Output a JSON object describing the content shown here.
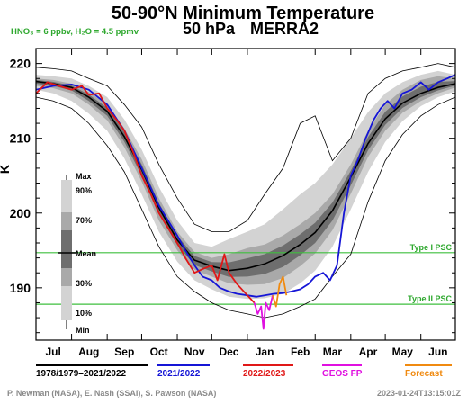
{
  "chart_data": {
    "type": "line",
    "title": "50-90°N Minimum Temperature",
    "subtitle_level": "50 hPa",
    "subtitle_source": "MERRA2",
    "conditions": "HNO₃ = 6 ppbv, H₂O = 4.5 ppmv",
    "ylabel": "K",
    "ylim": [
      183,
      222
    ],
    "xlim": [
      0,
      365
    ],
    "yticks": [
      190,
      200,
      210,
      220
    ],
    "months": [
      {
        "label": "Jul",
        "day": 15
      },
      {
        "label": "Aug",
        "day": 46
      },
      {
        "label": "Sep",
        "day": 77
      },
      {
        "label": "Oct",
        "day": 107
      },
      {
        "label": "Nov",
        "day": 138
      },
      {
        "label": "Dec",
        "day": 168
      },
      {
        "label": "Jan",
        "day": 199
      },
      {
        "label": "Feb",
        "day": 230
      },
      {
        "label": "Mar",
        "day": 258
      },
      {
        "label": "Apr",
        "day": 289
      },
      {
        "label": "May",
        "day": 319
      },
      {
        "label": "Jun",
        "day": 350
      }
    ],
    "month_boundaries": [
      31,
      62,
      92,
      123,
      153,
      184,
      215,
      243,
      274,
      304,
      335
    ],
    "psc_lines": [
      {
        "label": "Type I PSC",
        "value": 194.7
      },
      {
        "label": "Type II PSC",
        "value": 187.8
      }
    ],
    "climatology_days": [
      0,
      15,
      31,
      46,
      62,
      77,
      92,
      107,
      123,
      138,
      153,
      168,
      184,
      199,
      215,
      230,
      243,
      258,
      274,
      289,
      304,
      319,
      335,
      350,
      365
    ],
    "clim_max": [
      219.5,
      219.3,
      219.0,
      218.0,
      217.0,
      214.5,
      211.5,
      206.5,
      202.0,
      198.5,
      197.5,
      197.5,
      199.0,
      202.5,
      206.0,
      212.0,
      213.0,
      207.0,
      210.0,
      216.0,
      218.0,
      219.0,
      219.5,
      220.0,
      219.5
    ],
    "clim_p90": [
      218.5,
      218.3,
      218.0,
      217.0,
      215.5,
      212.5,
      208.5,
      203.5,
      199.0,
      196.0,
      195.5,
      196.5,
      197.5,
      198.5,
      200.5,
      202.5,
      204.0,
      206.5,
      210.0,
      213.5,
      216.0,
      217.5,
      218.5,
      219.0,
      218.5
    ],
    "clim_p70": [
      218.0,
      217.8,
      217.3,
      216.2,
      214.5,
      211.3,
      207.2,
      202.0,
      197.5,
      194.8,
      194.0,
      194.5,
      195.3,
      195.8,
      197.0,
      198.5,
      200.0,
      202.5,
      206.5,
      211.0,
      214.5,
      216.5,
      217.8,
      218.3,
      218.0
    ],
    "clim_mean": [
      217.6,
      217.3,
      216.8,
      215.5,
      213.6,
      210.2,
      205.8,
      200.7,
      196.4,
      193.7,
      192.9,
      192.3,
      192.6,
      193.2,
      194.3,
      195.8,
      197.4,
      200.3,
      204.8,
      209.3,
      212.6,
      214.7,
      216.0,
      216.8,
      217.3
    ],
    "clim_p30": [
      217.0,
      216.7,
      216.0,
      214.5,
      212.4,
      208.8,
      204.2,
      199.0,
      195.0,
      192.4,
      191.5,
      190.6,
      190.4,
      190.5,
      191.3,
      192.9,
      194.6,
      197.7,
      202.6,
      207.5,
      211.0,
      213.4,
      215.0,
      216.0,
      216.8
    ],
    "clim_p10": [
      216.5,
      216.0,
      215.0,
      213.3,
      211.0,
      207.3,
      202.5,
      197.5,
      193.5,
      191.0,
      189.8,
      188.8,
      188.5,
      188.6,
      189.2,
      190.6,
      192.3,
      195.5,
      200.5,
      205.5,
      209.5,
      212.3,
      214.3,
      215.5,
      216.3
    ],
    "clim_min": [
      215.5,
      215.0,
      214.0,
      212.0,
      209.0,
      205.5,
      200.5,
      195.5,
      191.5,
      189.5,
      188.0,
      187.0,
      186.5,
      186.0,
      186.5,
      187.5,
      188.5,
      191.5,
      194.5,
      201.5,
      207.0,
      210.5,
      213.0,
      214.5,
      215.5
    ],
    "series": [
      {
        "name": "2021/2022",
        "days": [
          0,
          15,
          31,
          46,
          62,
          77,
          92,
          107,
          115,
          123,
          130,
          138,
          145,
          153,
          160,
          168,
          175,
          184,
          192,
          199,
          207,
          215,
          222,
          230,
          237,
          243,
          250,
          256,
          262,
          268,
          274,
          280,
          287,
          294,
          300,
          306,
          312,
          319,
          327,
          335,
          342,
          350,
          358,
          365
        ],
        "values": [
          216.5,
          217.0,
          217.2,
          216.5,
          214.5,
          211.0,
          206.0,
          201.0,
          199.0,
          197.0,
          195.0,
          193.0,
          191.5,
          191.0,
          190.0,
          189.5,
          189.2,
          189.0,
          188.8,
          189.0,
          189.2,
          189.3,
          189.5,
          189.8,
          190.5,
          191.5,
          192.0,
          191.0,
          193.0,
          200.0,
          205.0,
          207.0,
          210.0,
          212.5,
          214.0,
          215.0,
          214.0,
          216.0,
          216.5,
          217.5,
          216.5,
          217.5,
          218.0,
          218.5
        ]
      },
      {
        "name": "2022/2023",
        "days": [
          0,
          10,
          20,
          31,
          40,
          46,
          55,
          62,
          70,
          77,
          85,
          92,
          100,
          107,
          115,
          123,
          130,
          138,
          145,
          153,
          158,
          164,
          168,
          175,
          184,
          190
        ],
        "values": [
          216.0,
          217.5,
          217.0,
          216.5,
          217.0,
          215.8,
          216.0,
          214.0,
          212.5,
          211.0,
          208.0,
          205.0,
          202.5,
          200.0,
          198.0,
          196.0,
          194.0,
          192.0,
          192.5,
          193.0,
          191.0,
          194.5,
          192.0,
          190.5,
          189.0,
          188.0
        ]
      },
      {
        "name": "GEOS FP",
        "days": [
          190,
          193,
          196,
          198,
          200,
          203,
          206
        ],
        "values": [
          188.0,
          186.5,
          187.5,
          184.5,
          188.0,
          187.0,
          189.0
        ]
      },
      {
        "name": "Forecast",
        "days": [
          206,
          209,
          212,
          215,
          218
        ],
        "values": [
          189.0,
          187.5,
          190.5,
          191.5,
          189.0
        ]
      }
    ],
    "legend": [
      {
        "label": "1978/1979–2021/2022",
        "color": "#000000"
      },
      {
        "label": "2021/2022",
        "color": "#1515d6"
      },
      {
        "label": "2022/2023",
        "color": "#e01818"
      },
      {
        "label": "GEOS FP",
        "color": "#e010e0"
      },
      {
        "label": "Forecast",
        "color": "#f08a10"
      }
    ],
    "inset_labels": [
      "Max",
      "90%",
      "70%",
      "Mean",
      "30%",
      "10%",
      "Min"
    ]
  },
  "colors": {
    "band_outer": "#d3d3d3",
    "band_mid": "#a9a9a9",
    "band_inner": "#6e6e6e",
    "psc": "#3fbf3f",
    "psc_text": "#2fa82f",
    "conditions": "#2fa82f",
    "credit": "#8a8a8a",
    "series_2021": "#1515d6",
    "series_2022": "#e01818",
    "series_geos": "#e010e0",
    "series_forecast": "#f08a10"
  },
  "footer": {
    "credits": "P. Newman (NASA), E. Nash (SSAI), S. Pawson (NASA)",
    "timestamp": "2023-01-24T13:15:01Z"
  }
}
